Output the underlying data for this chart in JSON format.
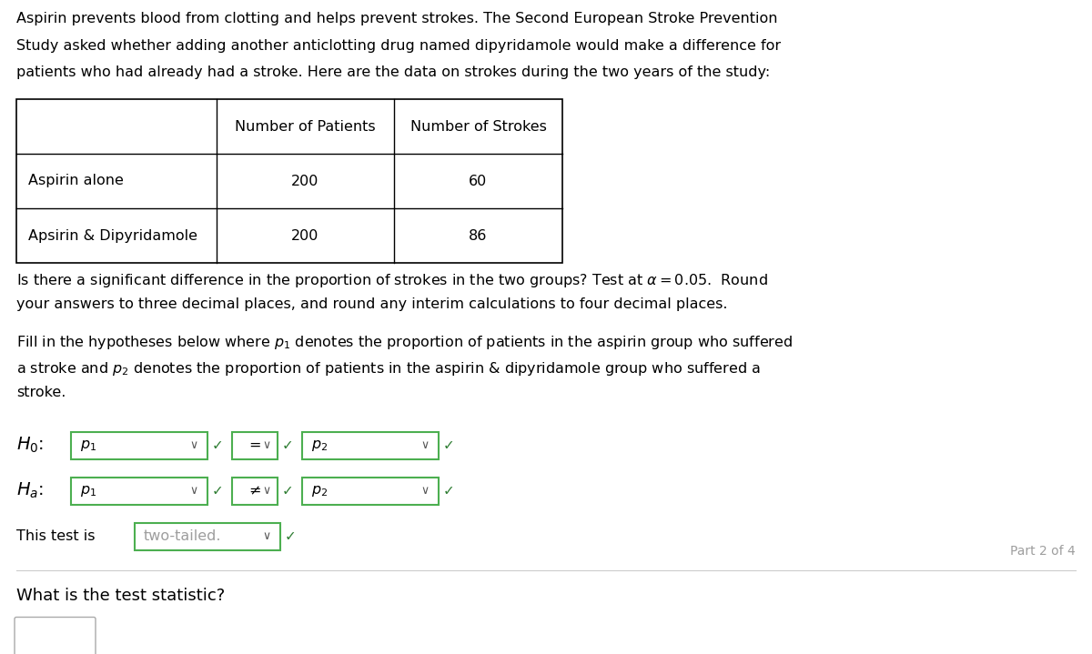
{
  "bg_color": "#ffffff",
  "intro_text_lines": [
    "Aspirin prevents blood from clotting and helps prevent strokes. The Second European Stroke Prevention",
    "Study asked whether adding another anticlotting drug named dipyridamole would make a difference for",
    "patients who had already had a stroke. Here are the data on strokes during the two years of the study:"
  ],
  "table_headers": [
    "",
    "Number of Patients",
    "Number of Strokes"
  ],
  "table_rows": [
    [
      "Aspirin alone",
      "200",
      "60"
    ],
    [
      "Apsirin & Dipyridamole",
      "200",
      "86"
    ]
  ],
  "text_color": "#000000",
  "gray_color": "#9e9e9e",
  "green_color": "#2e7d32",
  "box_green": "#4caf50",
  "table_border": "#000000",
  "sep_color": "#cccccc",
  "arrow_color": "#555555",
  "font_size_main": 11.5,
  "font_size_hyp_label": 14,
  "font_size_part": 10,
  "font_size_what": 13
}
